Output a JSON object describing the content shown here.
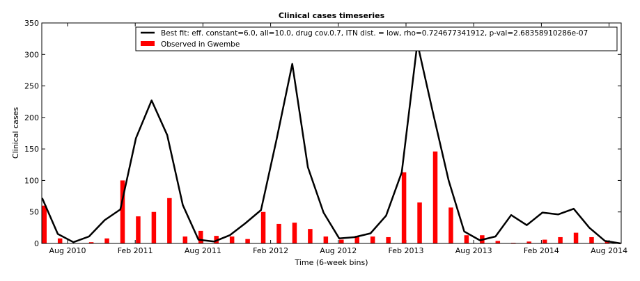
{
  "chart_data": {
    "type": "bar",
    "title": "Clinical cases timeseries",
    "xlabel": "Time (6-week bins)",
    "ylabel": "Clinical cases",
    "ylim": [
      0,
      350
    ],
    "yticks": [
      0,
      50,
      100,
      150,
      200,
      250,
      300,
      350
    ],
    "xtick_labels": [
      "Aug 2010",
      "Feb 2011",
      "Aug 2011",
      "Feb 2012",
      "Aug 2012",
      "Feb 2013",
      "Aug 2013",
      "Feb 2014",
      "Aug 2014"
    ],
    "legend_position": "top-right",
    "series": [
      {
        "name": "Best fit: eff. constant=6.0, all=10.0, drug cov.0.7, ITN dist. = low, rho=0.724677341912, p-val=2.68358910286e-07",
        "kind": "line",
        "color": "#000000",
        "values": [
          72,
          15,
          2,
          11,
          37,
          54,
          167,
          227,
          172,
          61,
          6,
          3,
          13,
          32,
          53,
          166,
          285,
          121,
          49,
          8,
          10,
          16,
          44,
          113,
          318,
          207,
          100,
          19,
          5,
          11,
          45,
          29,
          49,
          46,
          55,
          25,
          4,
          0
        ]
      },
      {
        "name": "Observed in Gwembe",
        "kind": "bar",
        "color": "#ff0000",
        "values": [
          60,
          8,
          0,
          2,
          8,
          100,
          43,
          50,
          72,
          11,
          20,
          12,
          11,
          7,
          50,
          31,
          33,
          23,
          11,
          6,
          12,
          11,
          10,
          113,
          65,
          146,
          57,
          13,
          13,
          4,
          1,
          3,
          6,
          10,
          17,
          10,
          3,
          1
        ]
      }
    ]
  }
}
